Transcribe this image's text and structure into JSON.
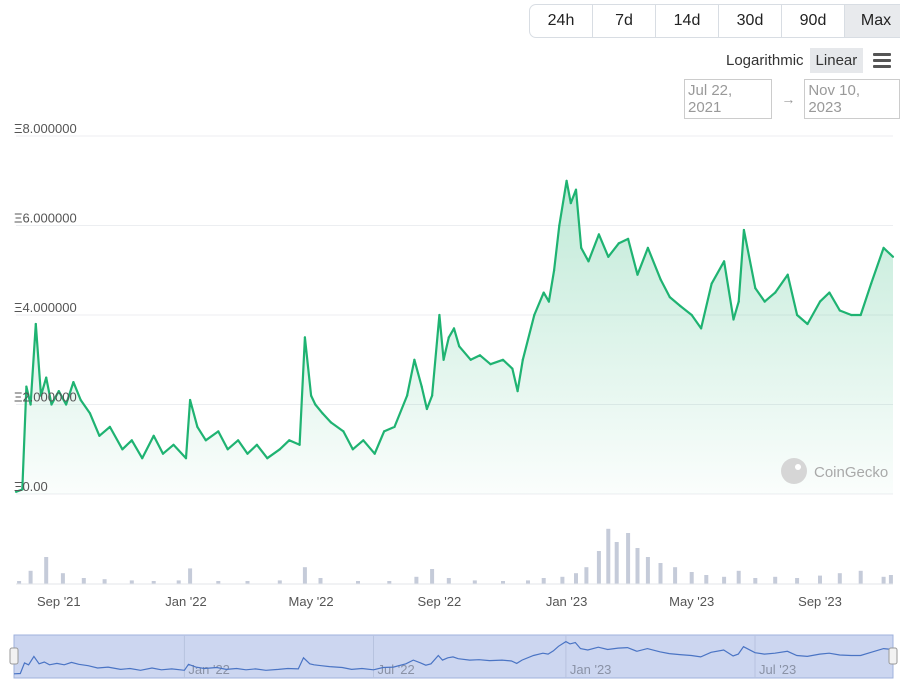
{
  "controls": {
    "ranges": [
      "24h",
      "7d",
      "14d",
      "30d",
      "90d",
      "Max"
    ],
    "active_range": "Max",
    "scales": [
      "Logarithmic",
      "Linear"
    ],
    "active_scale": "Linear",
    "date_from": "Jul 22, 2021",
    "date_arrow": "→",
    "date_to": "Nov 10, 2023"
  },
  "watermark": "CoinGecko",
  "colors": {
    "line": "#1fb372",
    "volume": "#c5cbd9",
    "navigator_line": "#4a74c4",
    "navigator_fill": "#ccd6f0"
  },
  "chart_data": {
    "type": "area",
    "title": "",
    "xlabel": "",
    "ylabel": "",
    "ylim": [
      0,
      8
    ],
    "yticks": [
      0,
      2,
      4,
      6,
      8
    ],
    "ytick_labels": [
      "Ξ0.00",
      "Ξ2.000000",
      "Ξ4.000000",
      "Ξ6.000000",
      "Ξ8.000000"
    ],
    "xtick_labels": [
      "Sep '21",
      "Jan '22",
      "May '22",
      "Sep '22",
      "Jan '23",
      "May '23",
      "Sep '23"
    ],
    "xtick_dates": [
      "2021-09-01",
      "2022-01-01",
      "2022-05-01",
      "2022-09-01",
      "2023-01-01",
      "2023-05-01",
      "2023-09-01"
    ],
    "xlim": [
      "2021-07-22",
      "2023-11-10"
    ],
    "navigator_labels": [
      "Jan '22",
      "Jul '22",
      "Jan '23",
      "Jul '23"
    ],
    "navigator_dates": [
      "2022-01-01",
      "2022-07-01",
      "2023-01-01",
      "2023-07-01"
    ],
    "series": [
      {
        "x": [
          "2021-07-22",
          "2021-07-28",
          "2021-08-01",
          "2021-08-05",
          "2021-08-10",
          "2021-08-15",
          "2021-08-20",
          "2021-08-25",
          "2021-09-01",
          "2021-09-08",
          "2021-09-15",
          "2021-09-22",
          "2021-10-01",
          "2021-10-10",
          "2021-10-20",
          "2021-11-01",
          "2021-11-10",
          "2021-11-20",
          "2021-12-01",
          "2021-12-10",
          "2021-12-20",
          "2022-01-01",
          "2022-01-05",
          "2022-01-12",
          "2022-01-20",
          "2022-02-01",
          "2022-02-10",
          "2022-02-20",
          "2022-03-01",
          "2022-03-10",
          "2022-03-20",
          "2022-04-01",
          "2022-04-10",
          "2022-04-20",
          "2022-04-25",
          "2022-05-01",
          "2022-05-05",
          "2022-05-12",
          "2022-05-20",
          "2022-06-01",
          "2022-06-10",
          "2022-06-20",
          "2022-07-01",
          "2022-07-10",
          "2022-07-20",
          "2022-08-01",
          "2022-08-08",
          "2022-08-15",
          "2022-08-20",
          "2022-08-25",
          "2022-09-01",
          "2022-09-05",
          "2022-09-10",
          "2022-09-15",
          "2022-09-20",
          "2022-10-01",
          "2022-10-10",
          "2022-10-20",
          "2022-11-01",
          "2022-11-10",
          "2022-11-15",
          "2022-11-20",
          "2022-12-01",
          "2022-12-10",
          "2022-12-15",
          "2022-12-20",
          "2022-12-25",
          "2023-01-01",
          "2023-01-05",
          "2023-01-10",
          "2023-01-15",
          "2023-01-22",
          "2023-02-01",
          "2023-02-10",
          "2023-02-20",
          "2023-03-01",
          "2023-03-10",
          "2023-03-20",
          "2023-04-01",
          "2023-04-10",
          "2023-04-20",
          "2023-05-01",
          "2023-05-10",
          "2023-05-20",
          "2023-06-01",
          "2023-06-10",
          "2023-06-15",
          "2023-06-20",
          "2023-07-01",
          "2023-07-10",
          "2023-07-20",
          "2023-08-01",
          "2023-08-10",
          "2023-08-20",
          "2023-09-01",
          "2023-09-10",
          "2023-09-20",
          "2023-10-01",
          "2023-10-10",
          "2023-10-20",
          "2023-11-01",
          "2023-11-10"
        ],
        "values": [
          0.05,
          0.1,
          2.4,
          2.0,
          3.8,
          2.2,
          2.6,
          2.0,
          2.3,
          2.0,
          2.5,
          2.1,
          1.8,
          1.3,
          1.5,
          1.0,
          1.2,
          0.8,
          1.3,
          0.9,
          1.1,
          0.8,
          2.1,
          1.5,
          1.2,
          1.4,
          1.0,
          1.2,
          0.9,
          1.1,
          0.8,
          1.0,
          1.2,
          1.1,
          3.5,
          2.2,
          2.0,
          1.8,
          1.6,
          1.4,
          1.0,
          1.2,
          0.9,
          1.4,
          1.5,
          2.2,
          3.0,
          2.4,
          1.9,
          2.2,
          4.0,
          3.0,
          3.5,
          3.7,
          3.3,
          3.0,
          3.1,
          2.9,
          3.0,
          2.8,
          2.3,
          3.0,
          4.0,
          4.5,
          4.3,
          5.0,
          6.0,
          7.0,
          6.5,
          6.8,
          5.5,
          5.2,
          5.8,
          5.3,
          5.6,
          5.7,
          4.9,
          5.5,
          4.8,
          4.4,
          4.2,
          4.0,
          3.7,
          4.7,
          5.2,
          3.9,
          4.3,
          5.9,
          4.6,
          4.3,
          4.5,
          4.9,
          4.0,
          3.8,
          4.3,
          4.5,
          4.1,
          4.0,
          4.0,
          4.7,
          5.5,
          5.3
        ]
      }
    ],
    "volume_dates": [
      "2021-07-25",
      "2021-08-05",
      "2021-08-20",
      "2021-09-05",
      "2021-09-25",
      "2021-10-15",
      "2021-11-10",
      "2021-12-01",
      "2021-12-25",
      "2022-01-05",
      "2022-02-01",
      "2022-03-01",
      "2022-04-01",
      "2022-04-25",
      "2022-05-10",
      "2022-06-15",
      "2022-07-15",
      "2022-08-10",
      "2022-08-25",
      "2022-09-10",
      "2022-10-05",
      "2022-11-01",
      "2022-11-25",
      "2022-12-10",
      "2022-12-28",
      "2023-01-10",
      "2023-01-20",
      "2023-02-01",
      "2023-02-10",
      "2023-02-18",
      "2023-03-01",
      "2023-03-10",
      "2023-03-20",
      "2023-04-01",
      "2023-04-15",
      "2023-05-01",
      "2023-05-15",
      "2023-06-01",
      "2023-06-15",
      "2023-07-01",
      "2023-07-20",
      "2023-08-10",
      "2023-09-01",
      "2023-09-20",
      "2023-10-10",
      "2023-11-01",
      "2023-11-08"
    ],
    "volume_values": [
      0.05,
      0.22,
      0.45,
      0.18,
      0.1,
      0.08,
      0.06,
      0.05,
      0.06,
      0.26,
      0.05,
      0.05,
      0.06,
      0.28,
      0.1,
      0.05,
      0.05,
      0.12,
      0.25,
      0.1,
      0.06,
      0.05,
      0.06,
      0.1,
      0.12,
      0.18,
      0.28,
      0.55,
      0.92,
      0.7,
      0.85,
      0.6,
      0.45,
      0.35,
      0.28,
      0.2,
      0.15,
      0.12,
      0.22,
      0.1,
      0.12,
      0.1,
      0.14,
      0.18,
      0.22,
      0.12,
      0.15
    ]
  }
}
